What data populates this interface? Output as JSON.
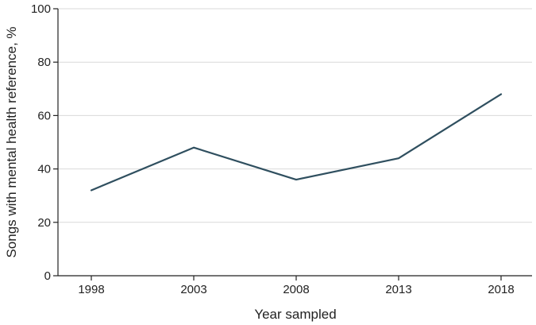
{
  "chart_data": {
    "type": "line",
    "title": "",
    "xlabel": "Year sampled",
    "ylabel": "Songs with mental health reference, %",
    "x": [
      1998,
      2003,
      2008,
      2013,
      2018
    ],
    "xticks": [
      "1998",
      "2003",
      "2008",
      "2013",
      "2018"
    ],
    "yticks": [
      "0",
      "20",
      "40",
      "60",
      "80",
      "100"
    ],
    "ylim": [
      0,
      100
    ],
    "grid": "horizontal",
    "legend": "none",
    "series": [
      {
        "values": [
          32,
          48,
          36,
          44,
          68
        ],
        "color": "#2f4f5f"
      }
    ]
  },
  "colors": {
    "line": "#2f4f5f",
    "grid": "#d9d9d9",
    "axis": "#222222"
  }
}
